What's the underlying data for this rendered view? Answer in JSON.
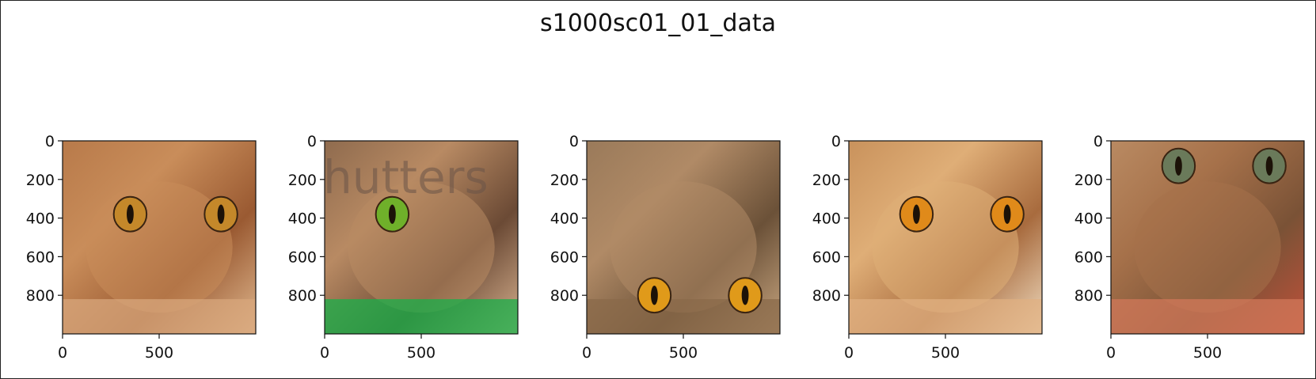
{
  "figure_title": "s1000sc01_01_data",
  "image_label": "image",
  "panels": [
    {
      "name": "panel-1",
      "palette": [
        "#b87a4a",
        "#c98d5a",
        "#9a5a32",
        "#e0b88f"
      ],
      "eye": "#c4882a",
      "bottom": "#d8a77c"
    },
    {
      "name": "panel-2",
      "palette": [
        "#8f6b4e",
        "#b88a63",
        "#6b4a35",
        "#d8b290"
      ],
      "eye": "#6fb02a",
      "bottom": "#18b04a",
      "watermark": "hutters"
    },
    {
      "name": "panel-3",
      "palette": [
        "#9a7a5a",
        "#b08a66",
        "#6b5138",
        "#c8a680"
      ],
      "eye": "#e09a1a",
      "bottom": "#8a6a4a"
    },
    {
      "name": "panel-4",
      "palette": [
        "#c9925c",
        "#dfae77",
        "#a86b3e",
        "#f0dcc0"
      ],
      "eye": "#e08a1a",
      "bottom": "#e0b081"
    },
    {
      "name": "panel-5",
      "palette": [
        "#b98a62",
        "#a6714a",
        "#7a5236",
        "#c0503a"
      ],
      "eye": "#6a7a5a",
      "bottom": "#d2785a"
    }
  ],
  "y_ticks": [
    "0",
    "200",
    "400",
    "600",
    "800"
  ],
  "x_ticks": [
    "0",
    "500"
  ]
}
